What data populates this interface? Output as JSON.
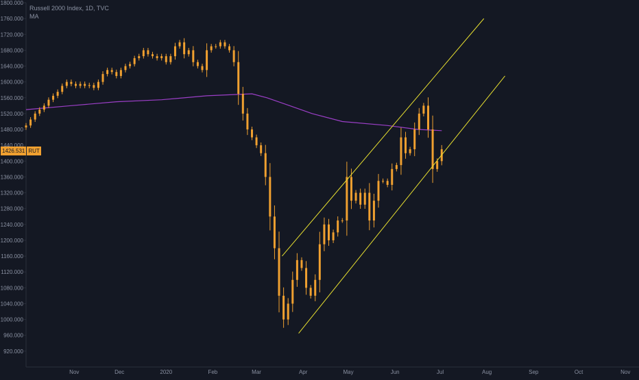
{
  "legend": {
    "title": "Russell 2000 Index, 1D, TVC",
    "indicator": "MA"
  },
  "last_price": {
    "value": "1426.531",
    "symbol": "RUT"
  },
  "colors": {
    "background": "#141823",
    "axis_text": "#8b92a3",
    "candle": "#f0a030",
    "ma_line": "#9c3fc8",
    "channel": "#e8e030",
    "axis_line": "#2a2f3b"
  },
  "chart_data": {
    "type": "candlestick",
    "title": "Russell 2000 Index, 1D, TVC",
    "ylim": [
      880,
      1800
    ],
    "y_ticks": [
      "920.000",
      "960.000",
      "1000.000",
      "1040.000",
      "1080.000",
      "1120.000",
      "1160.000",
      "1200.000",
      "1240.000",
      "1280.000",
      "1320.000",
      "1360.000",
      "1400.000",
      "1440.000",
      "1480.000",
      "1520.000",
      "1560.000",
      "1600.000",
      "1640.000",
      "1680.000",
      "1720.000",
      "1760.000",
      "1800.000"
    ],
    "x_ticks": [
      "Nov",
      "Dec",
      "2020",
      "Feb",
      "Mar",
      "Apr",
      "May",
      "Jun",
      "Jul",
      "Aug",
      "Sep",
      "Oct",
      "Nov"
    ],
    "x_tick_days": [
      32,
      62,
      93,
      124,
      153,
      184,
      214,
      245,
      275,
      306,
      337,
      367,
      398
    ],
    "x_range_days": [
      0,
      407
    ],
    "candle_close_by_day": [
      [
        0,
        1490
      ],
      [
        3,
        1505
      ],
      [
        6,
        1520
      ],
      [
        9,
        1530
      ],
      [
        12,
        1540
      ],
      [
        15,
        1555
      ],
      [
        18,
        1565
      ],
      [
        21,
        1575
      ],
      [
        24,
        1590
      ],
      [
        27,
        1600
      ],
      [
        30,
        1595
      ],
      [
        33,
        1590
      ],
      [
        36,
        1595
      ],
      [
        39,
        1590
      ],
      [
        42,
        1592
      ],
      [
        45,
        1585
      ],
      [
        48,
        1600
      ],
      [
        51,
        1620
      ],
      [
        54,
        1630
      ],
      [
        57,
        1625
      ],
      [
        60,
        1615
      ],
      [
        63,
        1630
      ],
      [
        66,
        1640
      ],
      [
        69,
        1645
      ],
      [
        72,
        1660
      ],
      [
        75,
        1665
      ],
      [
        78,
        1680
      ],
      [
        81,
        1670
      ],
      [
        84,
        1665
      ],
      [
        87,
        1660
      ],
      [
        90,
        1665
      ],
      [
        93,
        1650
      ],
      [
        96,
        1665
      ],
      [
        99,
        1690
      ],
      [
        102,
        1700
      ],
      [
        105,
        1670
      ],
      [
        108,
        1680
      ],
      [
        111,
        1650
      ],
      [
        114,
        1640
      ],
      [
        117,
        1630
      ],
      [
        120,
        1680
      ],
      [
        123,
        1690
      ],
      [
        126,
        1690
      ],
      [
        129,
        1700
      ],
      [
        132,
        1690
      ],
      [
        135,
        1680
      ],
      [
        138,
        1650
      ],
      [
        141,
        1570
      ],
      [
        144,
        1520
      ],
      [
        147,
        1480
      ],
      [
        150,
        1460
      ],
      [
        153,
        1440
      ],
      [
        156,
        1420
      ],
      [
        159,
        1360
      ],
      [
        162,
        1260
      ],
      [
        165,
        1180
      ],
      [
        168,
        1060
      ],
      [
        171,
        1000
      ],
      [
        174,
        1040
      ],
      [
        177,
        1100
      ],
      [
        180,
        1150
      ],
      [
        183,
        1130
      ],
      [
        186,
        1080
      ],
      [
        189,
        1060
      ],
      [
        192,
        1100
      ],
      [
        195,
        1190
      ],
      [
        198,
        1240
      ],
      [
        201,
        1200
      ],
      [
        204,
        1220
      ],
      [
        207,
        1250
      ],
      [
        210,
        1250
      ],
      [
        213,
        1360
      ],
      [
        216,
        1300
      ],
      [
        219,
        1320
      ],
      [
        222,
        1290
      ],
      [
        225,
        1320
      ],
      [
        228,
        1250
      ],
      [
        231,
        1300
      ],
      [
        234,
        1350
      ],
      [
        237,
        1350
      ],
      [
        240,
        1340
      ],
      [
        243,
        1380
      ],
      [
        246,
        1390
      ],
      [
        249,
        1460
      ],
      [
        252,
        1420
      ],
      [
        255,
        1430
      ],
      [
        258,
        1480
      ],
      [
        261,
        1520
      ],
      [
        264,
        1540
      ],
      [
        267,
        1480
      ],
      [
        270,
        1380
      ],
      [
        273,
        1400
      ],
      [
        276,
        1430
      ]
    ],
    "ma_by_day": [
      [
        0,
        1530
      ],
      [
        30,
        1540
      ],
      [
        60,
        1550
      ],
      [
        90,
        1555
      ],
      [
        120,
        1565
      ],
      [
        150,
        1570
      ],
      [
        160,
        1560
      ],
      [
        175,
        1540
      ],
      [
        190,
        1520
      ],
      [
        210,
        1500
      ],
      [
        240,
        1490
      ],
      [
        260,
        1480
      ],
      [
        276,
        1477
      ]
    ],
    "channel_lines": [
      {
        "name": "upper",
        "points": [
          [
            170,
            1160
          ],
          [
            304,
            1760
          ]
        ]
      },
      {
        "name": "lower",
        "points": [
          [
            181,
            965
          ],
          [
            318,
            1615
          ]
        ]
      }
    ]
  }
}
